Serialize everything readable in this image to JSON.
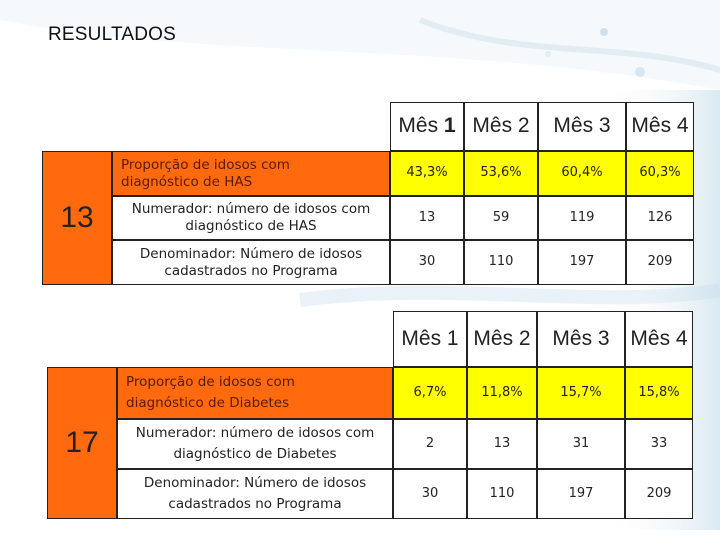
{
  "slide": {
    "title": "RESULTADOS"
  },
  "tables": [
    {
      "indicator": "13",
      "months": [
        {
          "word": "Mês",
          "num": "1"
        },
        {
          "word": "Mês",
          "num": "2"
        },
        {
          "word": "Mês",
          "num": "3"
        },
        {
          "word": "Mês",
          "num": "4"
        }
      ],
      "rows": [
        {
          "label_line1": "Proporção de idosos com",
          "label_line2": "diagnóstico de HAS",
          "values": [
            "43,3%",
            "53,6%",
            "60,4%",
            "60,3%"
          ]
        },
        {
          "label_line1": "Numerador: número de idosos com",
          "label_line2": "diagnóstico de HAS",
          "values": [
            "13",
            "59",
            "119",
            "126"
          ]
        },
        {
          "label_line1": "Denominador: Número de idosos",
          "label_line2": "cadastrados no Programa",
          "values": [
            "30",
            "110",
            "197",
            "209"
          ]
        }
      ]
    },
    {
      "indicator": "17",
      "months": [
        {
          "word": "Mês",
          "num": "1"
        },
        {
          "word": "Mês",
          "num": "2"
        },
        {
          "word": "Mês",
          "num": "3"
        },
        {
          "word": "Mês",
          "num": "4"
        }
      ],
      "rows": [
        {
          "label_line1": "Proporção de idosos com",
          "label_line2": "diagnóstico de Diabetes",
          "values": [
            "6,7%",
            "11,8%",
            "15,7%",
            "15,8%"
          ]
        },
        {
          "label_line1": "Numerador: número de idosos com",
          "label_line2": "diagnóstico de Diabetes",
          "values": [
            "2",
            "13",
            "31",
            "33"
          ]
        },
        {
          "label_line1": "Denominador: Número de idosos",
          "label_line2": "cadastrados no Programa",
          "values": [
            "30",
            "110",
            "197",
            "209"
          ]
        }
      ]
    }
  ],
  "colors": {
    "orange": "#ff6a0e",
    "yellow": "#ffff00",
    "border": "#222222"
  }
}
